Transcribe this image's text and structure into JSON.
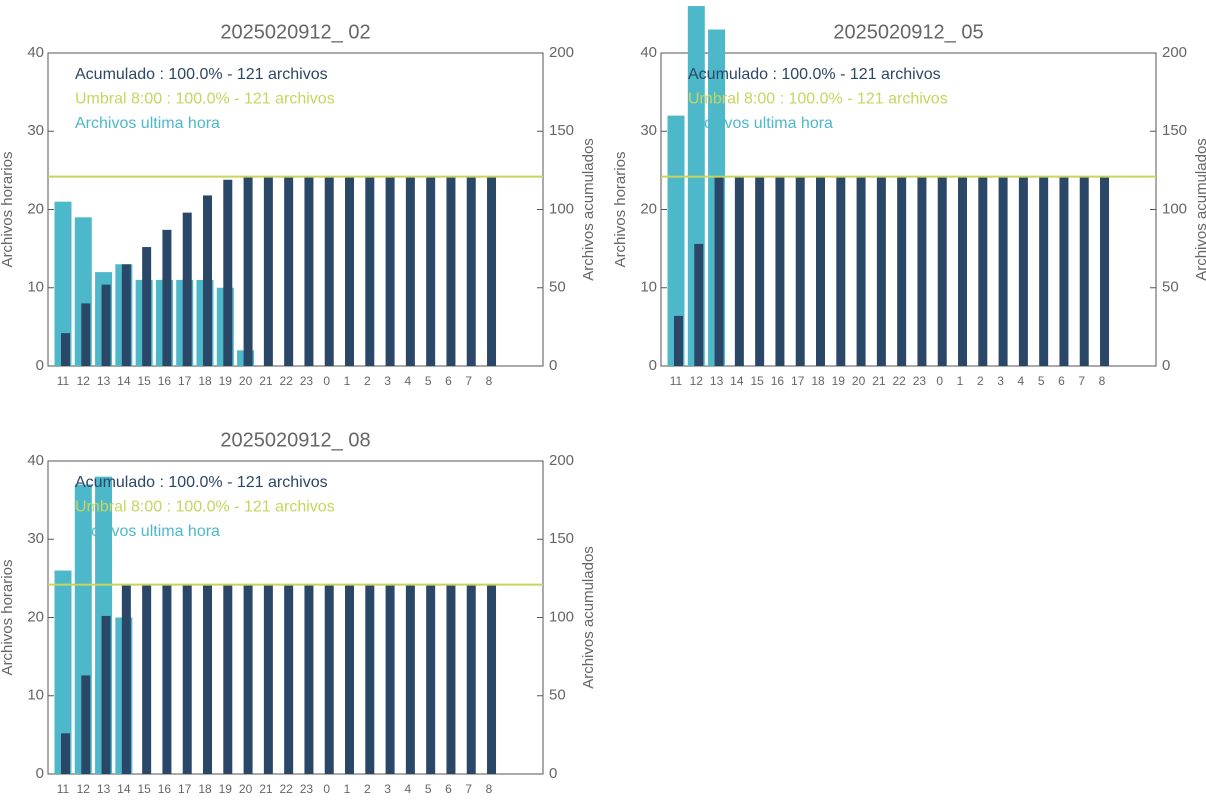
{
  "chart_data": [
    {
      "type": "bar",
      "title": "2025020912_ 02",
      "y_label": "Archivos horarios",
      "y2_label": "Archivos acumulados",
      "categories": [
        "11",
        "12",
        "13",
        "14",
        "15",
        "16",
        "17",
        "18",
        "19",
        "20",
        "21",
        "22",
        "23",
        "0",
        "1",
        "2",
        "3",
        "4",
        "5",
        "6",
        "7",
        "8"
      ],
      "series": [
        {
          "name": "Archivos ultima hora",
          "color": "#4db8c9",
          "values": [
            21,
            19,
            12,
            13,
            11,
            11,
            11,
            11,
            10,
            2,
            0,
            0,
            0,
            0,
            0,
            0,
            0,
            0,
            0,
            0,
            0,
            0
          ]
        },
        {
          "name": "Acumulado : 100.0% - 121 archivos",
          "color": "#2b4767",
          "axis": "y2",
          "values": [
            21,
            40,
            52,
            65,
            76,
            87,
            98,
            109,
            119,
            121,
            121,
            121,
            121,
            121,
            121,
            121,
            121,
            121,
            121,
            121,
            121,
            121
          ]
        }
      ],
      "threshold": {
        "name": "Umbral 8:00 : 100.0% - 121 archivos",
        "color": "#c8d45e",
        "axis": "y2",
        "value": 121
      },
      "ylim": [
        0,
        40
      ],
      "yticks": [
        0,
        10,
        20,
        30,
        40
      ],
      "y2lim": [
        0,
        200
      ],
      "y2ticks": [
        0,
        50,
        100,
        150,
        200
      ]
    },
    {
      "type": "bar",
      "title": "2025020912_ 05",
      "y_label": "Archivos horarios",
      "y2_label": "Archivos acumulados",
      "categories": [
        "11",
        "12",
        "13",
        "14",
        "15",
        "16",
        "17",
        "18",
        "19",
        "20",
        "21",
        "22",
        "23",
        "0",
        "1",
        "2",
        "3",
        "4",
        "5",
        "6",
        "7",
        "8"
      ],
      "series": [
        {
          "name": "Archivos ultima hora",
          "color": "#4db8c9",
          "values": [
            32,
            46,
            43,
            0,
            0,
            0,
            0,
            0,
            0,
            0,
            0,
            0,
            0,
            0,
            0,
            0,
            0,
            0,
            0,
            0,
            0,
            0
          ]
        },
        {
          "name": "Acumulado : 100.0% - 121 archivos",
          "color": "#2b4767",
          "axis": "y2",
          "values": [
            32,
            78,
            121,
            121,
            121,
            121,
            121,
            121,
            121,
            121,
            121,
            121,
            121,
            121,
            121,
            121,
            121,
            121,
            121,
            121,
            121,
            121
          ]
        }
      ],
      "threshold": {
        "name": "Umbral 8:00 : 100.0% - 121 archivos",
        "color": "#c8d45e",
        "axis": "y2",
        "value": 121
      },
      "ylim": [
        0,
        40
      ],
      "yticks": [
        0,
        10,
        20,
        30,
        40
      ],
      "y2lim": [
        0,
        200
      ],
      "y2ticks": [
        0,
        50,
        100,
        150,
        200
      ]
    },
    {
      "type": "bar",
      "title": "2025020912_ 08",
      "y_label": "Archivos horarios",
      "y2_label": "Archivos acumulados",
      "categories": [
        "11",
        "12",
        "13",
        "14",
        "15",
        "16",
        "17",
        "18",
        "19",
        "20",
        "21",
        "22",
        "23",
        "0",
        "1",
        "2",
        "3",
        "4",
        "5",
        "6",
        "7",
        "8"
      ],
      "series": [
        {
          "name": "Archivos ultima hora",
          "color": "#4db8c9",
          "values": [
            26,
            37,
            38,
            20,
            0,
            0,
            0,
            0,
            0,
            0,
            0,
            0,
            0,
            0,
            0,
            0,
            0,
            0,
            0,
            0,
            0,
            0
          ]
        },
        {
          "name": "Acumulado : 100.0% - 121 archivos",
          "color": "#2b4767",
          "axis": "y2",
          "values": [
            26,
            63,
            101,
            121,
            121,
            121,
            121,
            121,
            121,
            121,
            121,
            121,
            121,
            121,
            121,
            121,
            121,
            121,
            121,
            121,
            121,
            121
          ]
        }
      ],
      "threshold": {
        "name": "Umbral 8:00 : 100.0% - 121 archivos",
        "color": "#c8d45e",
        "axis": "y2",
        "value": 121
      },
      "ylim": [
        0,
        40
      ],
      "yticks": [
        0,
        10,
        20,
        30,
        40
      ],
      "y2lim": [
        0,
        200
      ],
      "y2ticks": [
        0,
        50,
        100,
        150,
        200
      ]
    }
  ]
}
